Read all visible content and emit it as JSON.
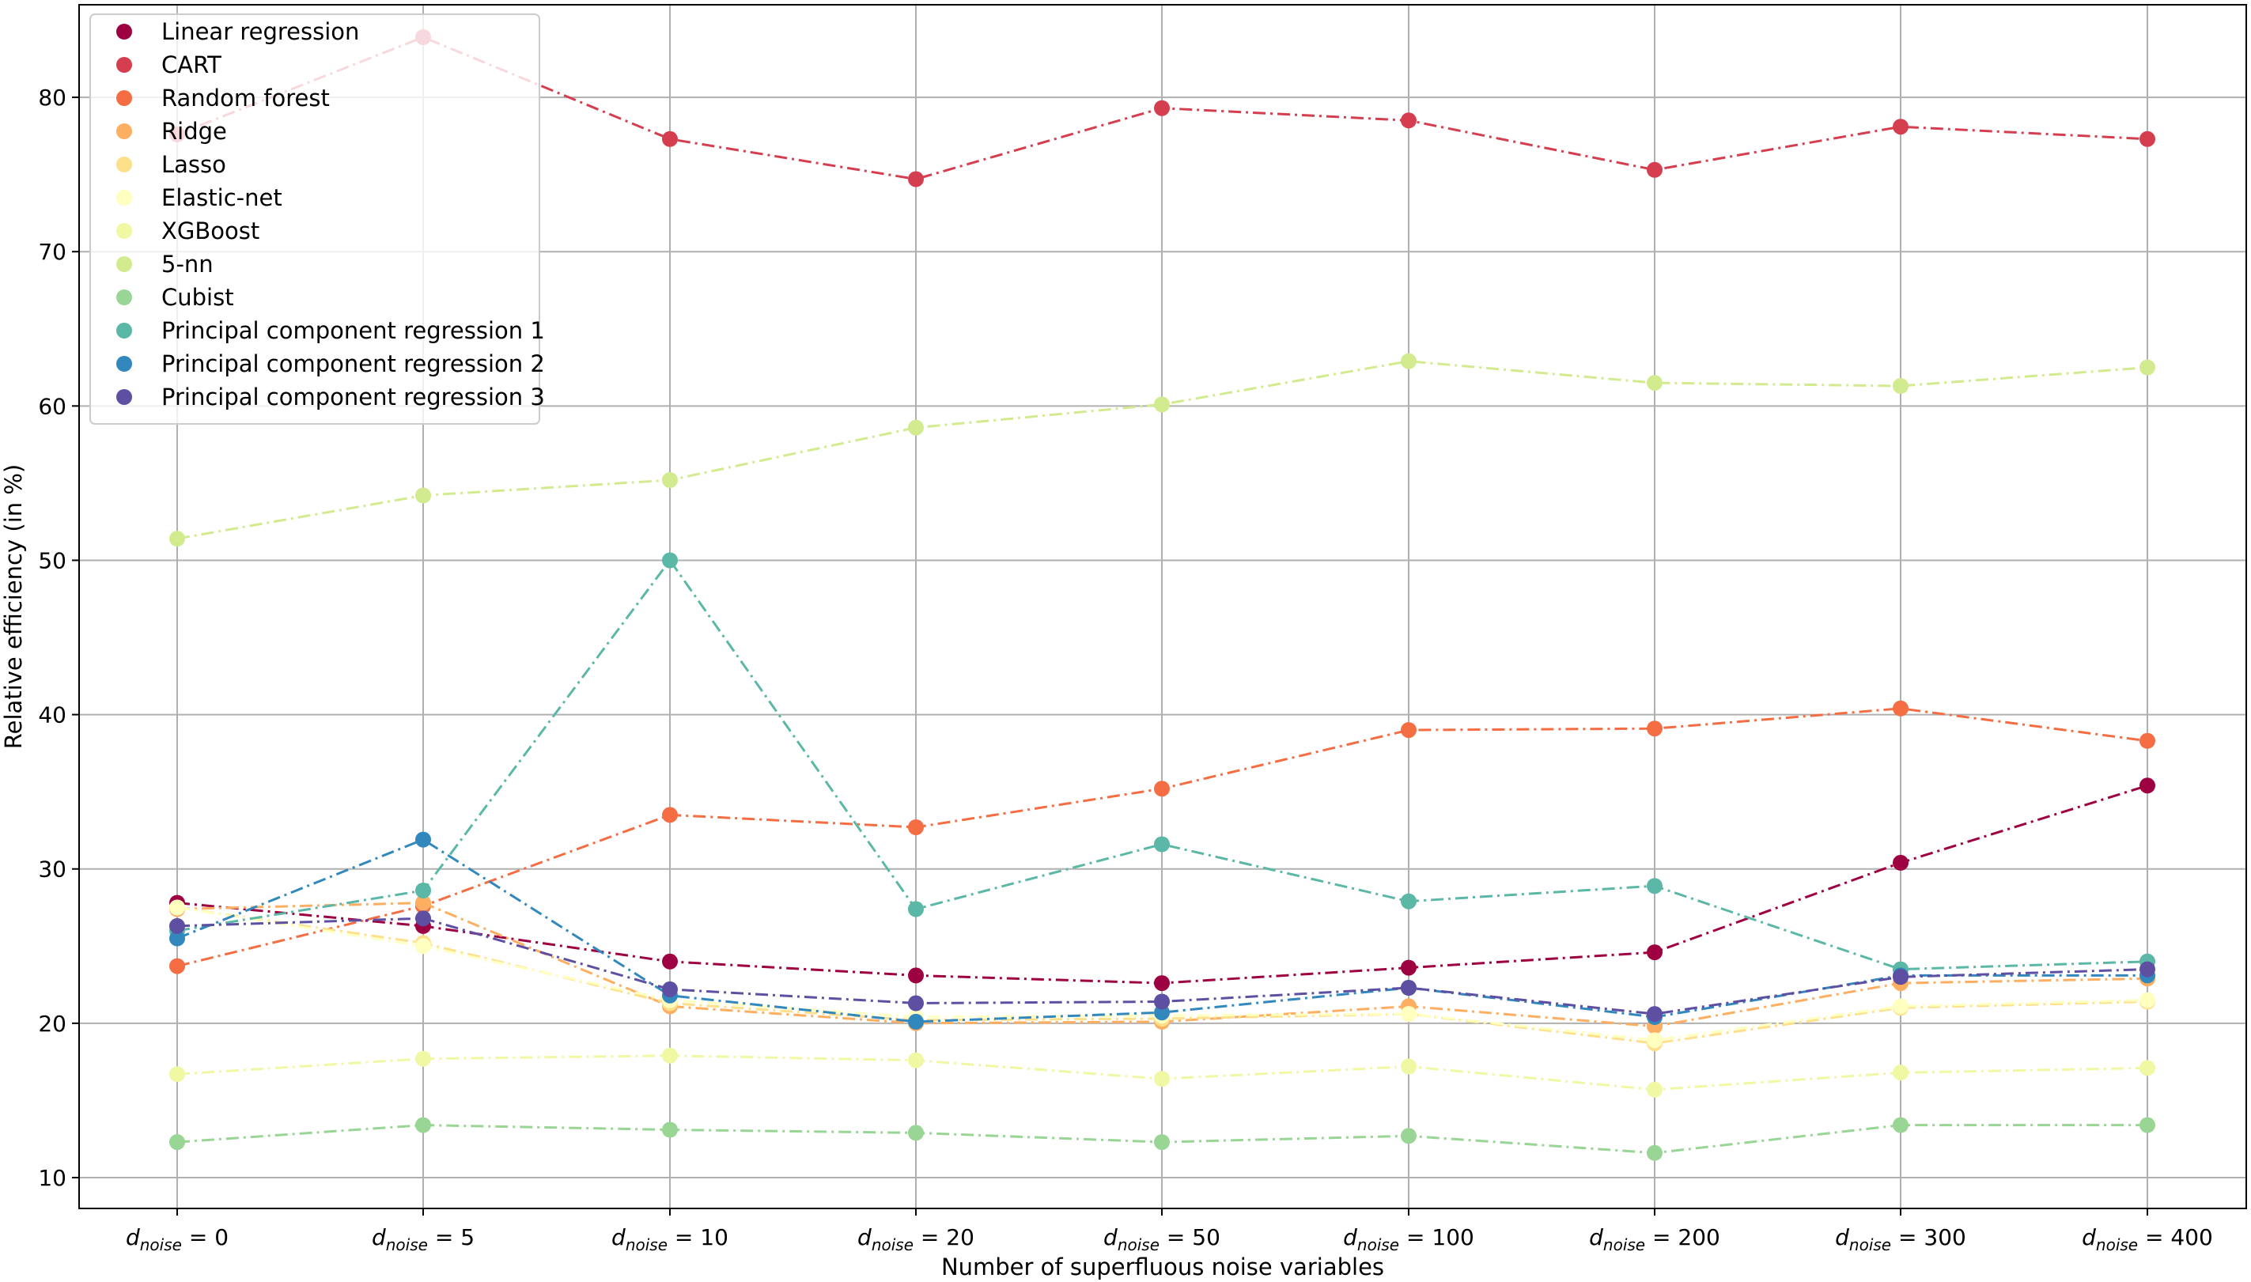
{
  "chart_data": {
    "type": "line",
    "xlabel": "Number of superfluous noise variables",
    "ylabel": "Relative efficiency (in %)",
    "xtick_prefix": "d",
    "xtick_subscript": "noise",
    "xtick_values": [
      "0",
      "5",
      "10",
      "20",
      "50",
      "100",
      "200",
      "300",
      "400"
    ],
    "ylim": [
      8,
      86
    ],
    "yticks": [
      10,
      20,
      30,
      40,
      50,
      60,
      70,
      80
    ],
    "grid": true,
    "legend_position": "top-left",
    "line_style": "dash-dot",
    "series": [
      {
        "name": "Linear regression",
        "color": "#9e0142",
        "values": [
          27.8,
          26.3,
          24.0,
          23.1,
          22.6,
          23.6,
          24.6,
          30.4,
          35.4
        ]
      },
      {
        "name": "CART",
        "color": "#d53e4f",
        "values": [
          77.6,
          83.9,
          77.3,
          74.7,
          79.3,
          78.5,
          75.3,
          78.1,
          77.3
        ]
      },
      {
        "name": "Random forest",
        "color": "#f46d43",
        "values": [
          23.7,
          27.6,
          33.5,
          32.7,
          35.2,
          39.0,
          39.1,
          40.4,
          38.3
        ]
      },
      {
        "name": "Ridge",
        "color": "#fdae61",
        "values": [
          27.4,
          27.8,
          21.1,
          20.0,
          20.1,
          21.1,
          19.8,
          22.6,
          22.9
        ]
      },
      {
        "name": "Lasso",
        "color": "#fee08b",
        "values": [
          27.5,
          25.2,
          21.3,
          20.2,
          20.3,
          20.6,
          18.7,
          21.0,
          21.4
        ]
      },
      {
        "name": "Elastic-net",
        "color": "#ffffbf",
        "values": [
          27.5,
          25.0,
          21.5,
          20.4,
          20.5,
          20.6,
          18.9,
          21.1,
          21.5
        ]
      },
      {
        "name": "XGBoost",
        "color": "#f0f8a4",
        "values": [
          16.7,
          17.7,
          17.9,
          17.6,
          16.4,
          17.2,
          15.7,
          16.8,
          17.1
        ]
      },
      {
        "name": "5-nn",
        "color": "#d2eb8f",
        "values": [
          51.4,
          54.2,
          55.2,
          58.6,
          60.1,
          62.9,
          61.5,
          61.3,
          62.5
        ]
      },
      {
        "name": "Cubist",
        "color": "#99d594",
        "values": [
          12.3,
          13.4,
          13.1,
          12.9,
          12.3,
          12.7,
          11.6,
          13.4,
          13.4
        ]
      },
      {
        "name": "Principal component regression 1",
        "color": "#5bb7a6",
        "values": [
          26.0,
          28.6,
          50.0,
          27.4,
          31.6,
          27.9,
          28.9,
          23.5,
          24.0
        ]
      },
      {
        "name": "Principal component regression 2",
        "color": "#3288bd",
        "values": [
          25.5,
          31.9,
          21.8,
          20.1,
          20.7,
          22.3,
          20.4,
          23.1,
          23.1
        ]
      },
      {
        "name": "Principal component regression 3",
        "color": "#5e4fa2",
        "values": [
          26.3,
          26.8,
          22.2,
          21.3,
          21.4,
          22.3,
          20.6,
          23.0,
          23.5
        ]
      }
    ]
  }
}
